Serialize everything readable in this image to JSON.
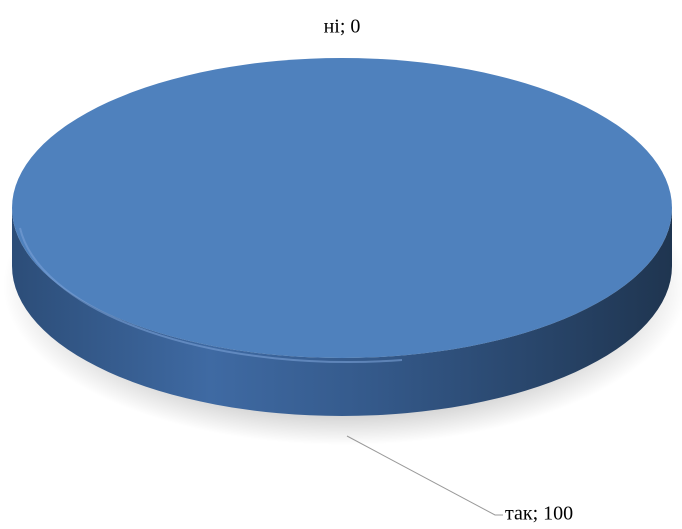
{
  "chart_data": {
    "type": "pie",
    "values": [
      0,
      100
    ],
    "value_labels": [
      "ні; 0",
      "так; 100"
    ],
    "colors": [
      "#c0504d",
      "#4f81bd"
    ]
  }
}
